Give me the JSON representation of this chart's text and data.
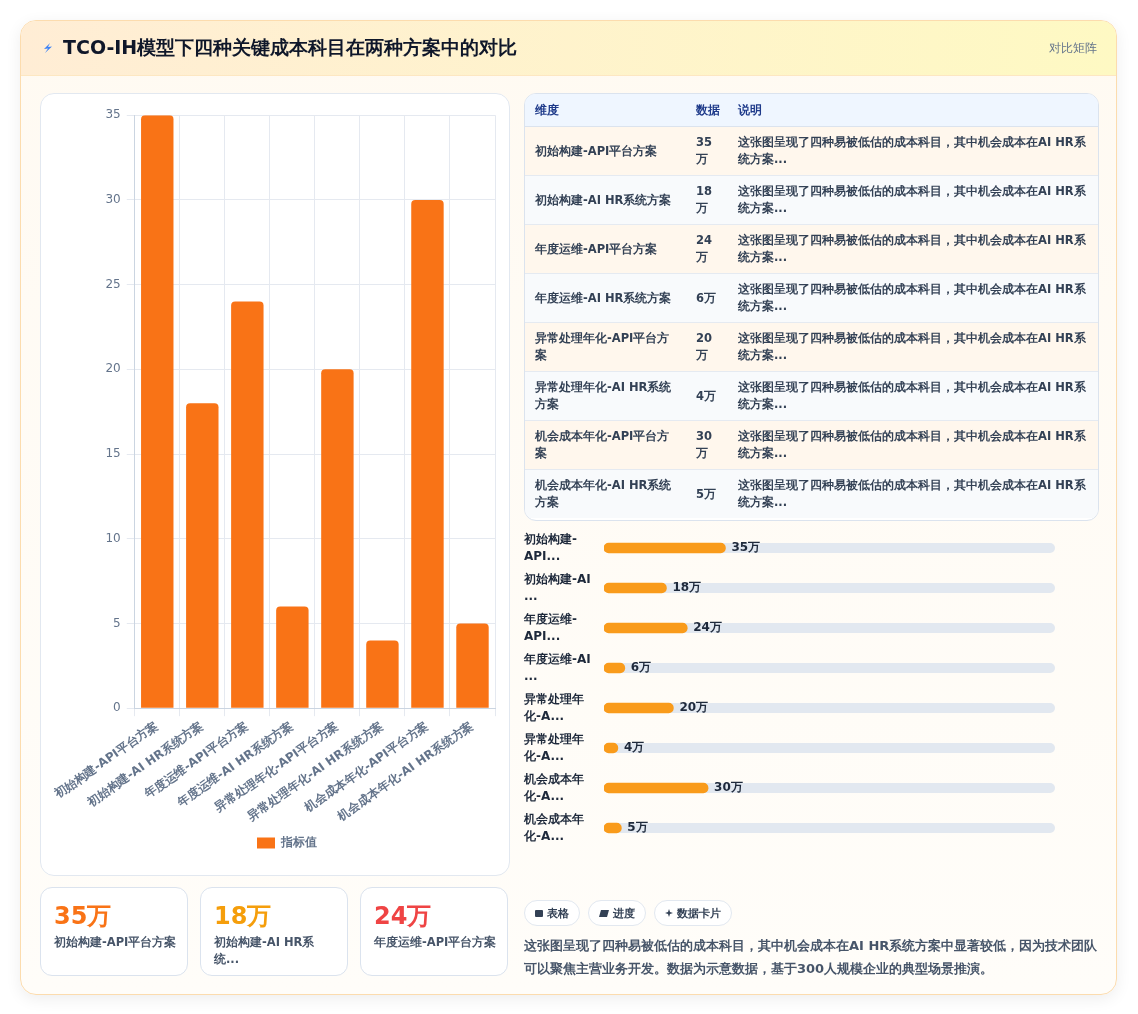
{
  "chart_data": [
    {
      "type": "bar",
      "title": "TCO-IH模型下四种关键成本科目在两种方案中的对比",
      "categories": [
        "初始构建-API平台方案",
        "初始构建-AI HR系统方案",
        "年度运维-API平台方案",
        "年度运维-AI HR系统方案",
        "异常处理年化-API平台方案",
        "异常处理年化-AI HR系统方案",
        "机会成本年化-API平台方案",
        "机会成本年化-AI HR系统方案"
      ],
      "series": [
        {
          "name": "指标值",
          "color": "#f97316",
          "values": [
            35,
            18,
            24,
            6,
            20,
            4,
            30,
            5
          ]
        }
      ],
      "ylim": [
        0,
        35
      ],
      "yticks": [
        0,
        5,
        10,
        15,
        20,
        25,
        30,
        35
      ],
      "grid": true,
      "legend": "bottom"
    },
    {
      "type": "other",
      "subtitle": "对比矩阵",
      "categories": [
        "初始构建-API平台方案",
        "初始构建-AI HR系统方案",
        "年度运维-API平台方案",
        "年度运维-AI HR系统方案",
        "异常处理年化-API平台方案",
        "异常处理年化-AI HR系统方案",
        "机会成本年化-API平台方案",
        "机会成本年化-AI HR系统方案"
      ],
      "value_labels": [
        "35万",
        "18万",
        "24万",
        "6万",
        "20万",
        "4万",
        "30万",
        "5万"
      ],
      "annotations": [
        "维度",
        "数据",
        "说明",
        "这张图呈现了四种易被低估的成本科目，其中机会成本在AI HR系统方案...",
        "这张图呈现了四种易被低估的成本科目，其中机会成本在AI HR系统方案...",
        "这张图呈现了四种易被低估的成本科目，其中机会成本在AI HR系统方案...",
        "这张图呈现了四种易被低估的成本科目，其中机会成本在AI HR系统方案...",
        "这张图呈现了四种易被低估的成本科目，其中机会成本在AI HR系统方案...",
        "这张图呈现了四种易被低估的成本科目，其中机会成本在AI HR系统方案...",
        "这张图呈现了四种易被低估的成本科目，其中机会成本在AI HR系统方案...",
        "这张图呈现了四种易被低估的成本科目，其中机会成本在AI HR系统方案..."
      ]
    },
    {
      "type": "bar",
      "orientation": "horizontal",
      "categories": [
        "初始构建-API...",
        "初始构建-AI ...",
        "年度运维-API...",
        "年度运维-AI ...",
        "异常处理年化-A...",
        "异常处理年化-A...",
        "机会成本年化-A...",
        "机会成本年化-A..."
      ],
      "values": [
        35,
        18,
        24,
        6,
        20,
        4,
        30,
        5
      ],
      "value_labels": [
        "35万",
        "18万",
        "24万",
        "6万",
        "20万",
        "4万",
        "30万",
        "5万"
      ],
      "color": "#f99b1b",
      "xlim": [
        0,
        130
      ],
      "tick_labels": "y"
    },
    {
      "type": "other",
      "categories": [
        "初始构建-API平台方案",
        "初始构建-AI HR系统...",
        "年度运维-API平台方案"
      ],
      "value_labels": [
        "35万",
        "18万",
        "24万"
      ],
      "annotations": [
        "表格",
        "进度",
        "数据卡片",
        "这张图呈现了四种易被低估的成本科目，其中机会成本在AI HR系统方案中显著较低，因为技术团队可以聚焦主营业务开发。数据为示意数据，基于300人规模企业的典型场景推演。"
      ]
    }
  ]
}
